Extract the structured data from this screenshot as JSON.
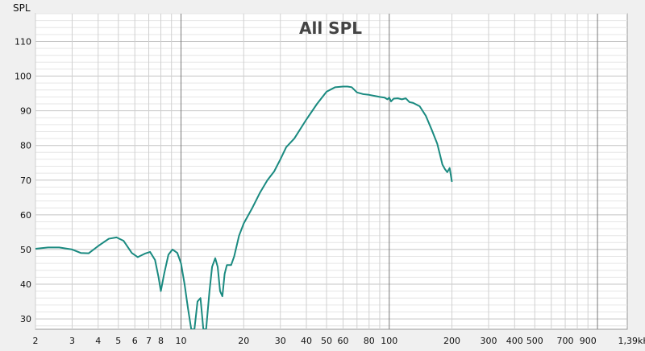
{
  "chart_data": {
    "type": "line",
    "title": "All SPL",
    "ylabel": "SPL",
    "xlabel": "",
    "x_scale": "log",
    "xlim": [
      2,
      1390
    ],
    "ylim": [
      27,
      118
    ],
    "grid": true,
    "y_ticks": [
      30,
      40,
      50,
      60,
      70,
      80,
      90,
      100,
      110
    ],
    "x_ticks": [
      {
        "value": 2,
        "label": "2"
      },
      {
        "value": 3,
        "label": "3"
      },
      {
        "value": 4,
        "label": "4"
      },
      {
        "value": 5,
        "label": "5"
      },
      {
        "value": 6,
        "label": "6"
      },
      {
        "value": 7,
        "label": "7"
      },
      {
        "value": 8,
        "label": "8"
      },
      {
        "value": 10,
        "label": "10"
      },
      {
        "value": 20,
        "label": "20"
      },
      {
        "value": 30,
        "label": "30"
      },
      {
        "value": 40,
        "label": "40"
      },
      {
        "value": 50,
        "label": "50"
      },
      {
        "value": 60,
        "label": "60"
      },
      {
        "value": 80,
        "label": "80"
      },
      {
        "value": 100,
        "label": "100"
      },
      {
        "value": 200,
        "label": "200"
      },
      {
        "value": 300,
        "label": "300"
      },
      {
        "value": 400,
        "label": "400"
      },
      {
        "value": 500,
        "label": "500"
      },
      {
        "value": 700,
        "label": "700"
      },
      {
        "value": 900,
        "label": "900"
      },
      {
        "value": 1390,
        "label": "1,39kHz"
      }
    ],
    "series": [
      {
        "color": "#1a8a80",
        "x": [
          2,
          2.3,
          2.6,
          3.0,
          3.3,
          3.6,
          4.0,
          4.5,
          4.9,
          5.3,
          5.8,
          6.2,
          6.7,
          7.1,
          7.5,
          7.8,
          8.0,
          8.3,
          8.7,
          9.1,
          9.6,
          10.0,
          10.4,
          10.8,
          11.2,
          11.6,
          12.0,
          12.4,
          12.8,
          13.2,
          13.7,
          14.1,
          14.6,
          15.0,
          15.4,
          15.8,
          16.2,
          16.6,
          17.0,
          17.4,
          18.0,
          19.0,
          20.0,
          22.0,
          24.0,
          26.0,
          28.0,
          30.0,
          32.0,
          35.0,
          40.0,
          45.0,
          50.0,
          55.0,
          60.0,
          63.0,
          66.0,
          70.0,
          75.0,
          80.0,
          85.0,
          90.0,
          95.0,
          98.0,
          100.0,
          102.0,
          105.0,
          110.0,
          115.0,
          120.0,
          125.0,
          130.0,
          140.0,
          150.0,
          160.0,
          170.0,
          175.0,
          180.0,
          185.0,
          190.0,
          195.0,
          200.0
        ],
        "y": [
          50.2,
          50.6,
          50.6,
          50.0,
          49.0,
          48.9,
          51.0,
          53.1,
          53.5,
          52.5,
          49.0,
          47.8,
          48.8,
          49.3,
          47.0,
          42.0,
          38.0,
          43.0,
          48.5,
          50.0,
          49.0,
          46.0,
          40.0,
          33.0,
          27.0,
          27.0,
          35.0,
          36.0,
          27.0,
          27.0,
          38.0,
          45.0,
          47.5,
          45.0,
          38.0,
          36.5,
          43.0,
          45.5,
          45.5,
          45.5,
          48.0,
          54.0,
          57.5,
          62.0,
          66.5,
          70.0,
          72.5,
          76.0,
          79.5,
          82.0,
          87.5,
          92.0,
          95.5,
          96.8,
          97.0,
          97.0,
          96.8,
          95.3,
          94.8,
          94.6,
          94.3,
          94.0,
          93.8,
          93.3,
          93.8,
          92.7,
          93.5,
          93.6,
          93.3,
          93.6,
          92.5,
          92.3,
          91.3,
          88.5,
          84.5,
          80.5,
          77.5,
          74.5,
          73.2,
          72.3,
          73.5,
          69.5
        ]
      }
    ]
  }
}
